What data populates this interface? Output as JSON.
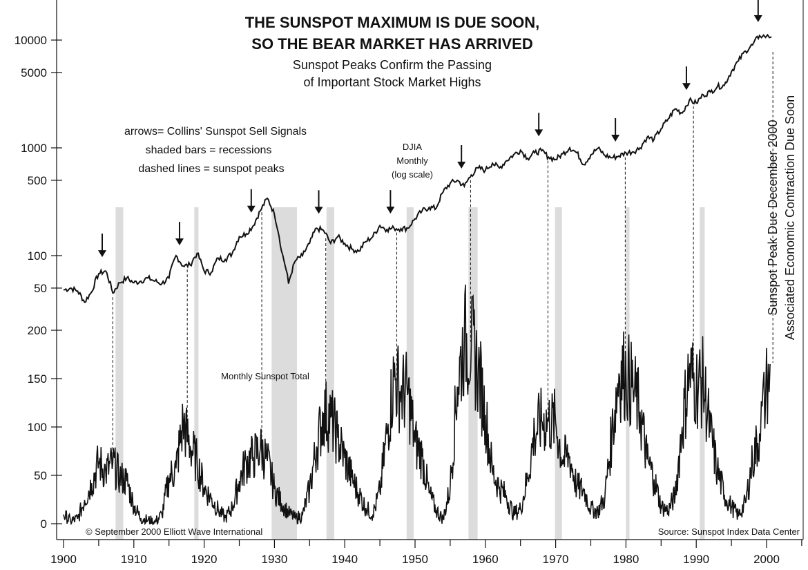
{
  "chart_data": {
    "type": "line",
    "title": [
      "THE SUNSPOT MAXIMUM IS DUE SOON,",
      "SO THE BEAR MARKET HAS ARRIVED"
    ],
    "subtitle": [
      "Sunspot Peaks Confirm the Passing",
      "of Important Stock Market Highs"
    ],
    "legend_notes": [
      "arrows= Collins' Sunspot Sell Signals",
      "shaded bars = recessions",
      "dashed lines = sunspot peaks"
    ],
    "djia_label": [
      "DJIA",
      "Monthly",
      "(log scale)"
    ],
    "sunspot_label": "Monthly Sunspot Total",
    "right_annotation": [
      "Sunspot Peak Due December 2000",
      "Associated Economic Contraction Due Soon"
    ],
    "copyright": "© September 2000 Elliott Wave International",
    "source": "Source: Sunspot Index Data Center",
    "x_ticks": [
      1900,
      1910,
      1920,
      1930,
      1940,
      1950,
      1960,
      1970,
      1980,
      1990,
      2000
    ],
    "xlim": [
      1899,
      2006
    ],
    "djia_axis": {
      "scale": "log",
      "ticks": [
        50,
        100,
        500,
        1000,
        5000,
        10000
      ],
      "tick_labels": [
        "50",
        "100",
        "500",
        "1000",
        "5000",
        "10000"
      ]
    },
    "sunspot_axis": {
      "scale": "linear",
      "ticks": [
        0,
        50,
        100,
        150,
        200
      ],
      "tick_labels": [
        "0",
        "50",
        "100",
        "150",
        "200"
      ],
      "ylim": [
        0,
        200
      ]
    },
    "series": [
      {
        "name": "DJIA",
        "x": [
          1900,
          1901,
          1902,
          1903,
          1904,
          1905,
          1906,
          1907,
          1908,
          1909,
          1910,
          1911,
          1912,
          1913,
          1914,
          1915,
          1916,
          1917,
          1918,
          1919,
          1920,
          1921,
          1922,
          1923,
          1924,
          1925,
          1926,
          1927,
          1928,
          1929,
          1930,
          1931,
          1932,
          1933,
          1934,
          1935,
          1936,
          1937,
          1938,
          1939,
          1940,
          1941,
          1942,
          1943,
          1944,
          1945,
          1946,
          1947,
          1948,
          1949,
          1950,
          1951,
          1952,
          1953,
          1954,
          1955,
          1956,
          1957,
          1958,
          1959,
          1960,
          1961,
          1962,
          1963,
          1964,
          1965,
          1966,
          1967,
          1968,
          1969,
          1970,
          1971,
          1972,
          1973,
          1974,
          1975,
          1976,
          1977,
          1978,
          1979,
          1980,
          1981,
          1982,
          1983,
          1984,
          1985,
          1986,
          1987,
          1988,
          1989,
          1990,
          1991,
          1992,
          1993,
          1994,
          1995,
          1996,
          1997,
          1998,
          1999,
          2000.7
        ],
        "values": [
          48,
          50,
          47,
          37,
          46,
          68,
          72,
          45,
          56,
          62,
          56,
          58,
          62,
          58,
          55,
          62,
          100,
          80,
          82,
          105,
          72,
          70,
          95,
          92,
          105,
          150,
          160,
          190,
          260,
          340,
          240,
          110,
          55,
          90,
          100,
          130,
          180,
          170,
          130,
          150,
          130,
          115,
          110,
          135,
          150,
          190,
          175,
          180,
          178,
          180,
          220,
          260,
          280,
          275,
          390,
          470,
          500,
          440,
          560,
          650,
          620,
          720,
          650,
          760,
          860,
          950,
          800,
          900,
          940,
          820,
          780,
          880,
          1000,
          900,
          700,
          860,
          990,
          850,
          810,
          840,
          900,
          920,
          1000,
          1250,
          1200,
          1500,
          1850,
          2300,
          2100,
          2750,
          2600,
          3100,
          3300,
          3700,
          3800,
          5100,
          6400,
          7900,
          9000,
          11000,
          10700
        ]
      },
      {
        "name": "Monthly Sunspot Total",
        "x": [
          1900,
          1901,
          1902,
          1903,
          1904,
          1905,
          1906,
          1907,
          1908,
          1909,
          1910,
          1911,
          1912,
          1913,
          1914,
          1915,
          1916,
          1917,
          1918,
          1919,
          1920,
          1921,
          1922,
          1923,
          1924,
          1925,
          1926,
          1927,
          1928,
          1929,
          1930,
          1931,
          1932,
          1933,
          1934,
          1935,
          1936,
          1937,
          1938,
          1939,
          1940,
          1941,
          1942,
          1943,
          1944,
          1945,
          1946,
          1947,
          1948,
          1949,
          1950,
          1951,
          1952,
          1953,
          1954,
          1955,
          1956,
          1957,
          1958,
          1959,
          1960,
          1961,
          1962,
          1963,
          1964,
          1965,
          1966,
          1967,
          1968,
          1969,
          1970,
          1971,
          1972,
          1973,
          1974,
          1975,
          1976,
          1977,
          1978,
          1979,
          1980,
          1981,
          1982,
          1983,
          1984,
          1985,
          1986,
          1987,
          1988,
          1989,
          1990,
          1991,
          1992,
          1993,
          1994,
          1995,
          1996,
          1997,
          1998,
          1999,
          2000.5
        ],
        "values": [
          9.5,
          2.7,
          5,
          24.4,
          42,
          63.5,
          53.8,
          62,
          48.5,
          43.9,
          18.6,
          5.7,
          3.6,
          1.4,
          9.6,
          47.4,
          57.1,
          103.9,
          80.6,
          63.6,
          37.6,
          26.1,
          14.2,
          5.8,
          16.7,
          44.3,
          63.9,
          69,
          77.8,
          64.9,
          35.7,
          21.2,
          11.1,
          5.7,
          8.7,
          36.1,
          79.7,
          114.4,
          109.6,
          88.8,
          67.8,
          47.5,
          30.6,
          16.3,
          9.6,
          33.2,
          92.6,
          151.6,
          136.3,
          134.7,
          83.9,
          69.4,
          31.5,
          13.9,
          4.4,
          38,
          141.7,
          190.2,
          184.8,
          159,
          112.3,
          53.9,
          37.6,
          27.9,
          10.2,
          15.1,
          47,
          93.8,
          105.9,
          105.5,
          104.5,
          66.6,
          68.9,
          38,
          34.5,
          15.5,
          12.6,
          27.5,
          92.5,
          155.4,
          154.6,
          140.4,
          115.9,
          66.6,
          45.9,
          17.9,
          13.4,
          29.4,
          100.2,
          157.6,
          142.6,
          145.7,
          94.3,
          54.6,
          29.9,
          17.5,
          8.6,
          21.5,
          64.3,
          93.3,
          165
        ]
      }
    ],
    "recessions": [
      [
        1907.4,
        1908.5
      ],
      [
        1918.6,
        1919.2
      ],
      [
        1929.6,
        1933.2
      ],
      [
        1937.4,
        1938.5
      ],
      [
        1948.8,
        1949.8
      ],
      [
        1957.6,
        1958.9
      ],
      [
        1969.9,
        1970.9
      ],
      [
        1980.0,
        1980.5
      ],
      [
        1990.5,
        1991.2
      ]
    ],
    "sunspot_peaks": [
      1907.0,
      1917.6,
      1928.2,
      1937.3,
      1947.4,
      1957.9,
      1968.9,
      1979.9,
      1989.6,
      2000.9
    ],
    "sell_signals": [
      1905.5,
      1916.5,
      1926.7,
      1936.3,
      1946.5,
      1956.6,
      1967.6,
      1978.5,
      1988.6,
      1998.8
    ],
    "colors": {
      "line": "#111111",
      "recession": "#dcdcdc"
    }
  }
}
